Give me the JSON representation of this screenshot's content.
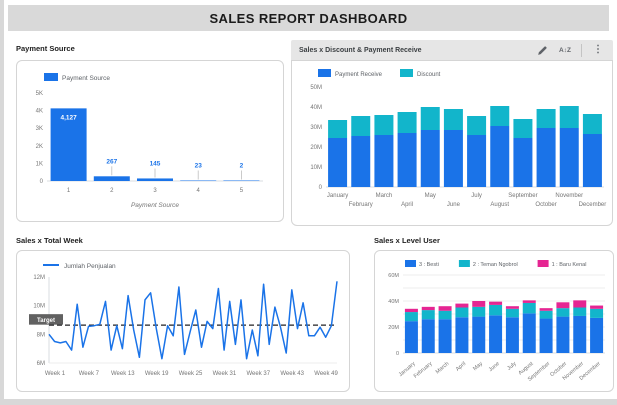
{
  "page": {
    "title": "SALES REPORT DASHBOARD"
  },
  "colors": {
    "blue": "#1a73e8",
    "teal": "#12b5cb",
    "pink": "#e52592",
    "axis_text": "#757575",
    "legend_text": "#5f6368",
    "grid": "#ececec",
    "axis_line": "#dadce0",
    "target_chip_bg": "#616161",
    "header_bg": "#d9d9d9"
  },
  "toolbar": {
    "icons": [
      "edit-icon",
      "sort-az-icon",
      "more-vert-icon"
    ],
    "sort_glyph": "A↕Z",
    "kebab_glyph": "⋮"
  },
  "chart_data": [
    {
      "id": "payment-source",
      "type": "bar",
      "title": "Payment Source",
      "legend": [
        "Payment Source"
      ],
      "categories": [
        "1",
        "2",
        "3",
        "4",
        "5"
      ],
      "values": [
        4127,
        267,
        145,
        23,
        2
      ],
      "value_labels": [
        "4,127",
        "267",
        "145",
        "23",
        "2"
      ],
      "xlabel": "Payment Source",
      "ylim": [
        0,
        5000
      ],
      "yticks": [
        {
          "v": 0,
          "label": "0"
        },
        {
          "v": 1000,
          "label": "1K"
        },
        {
          "v": 2000,
          "label": "2K"
        },
        {
          "v": 3000,
          "label": "3K"
        },
        {
          "v": 4000,
          "label": "4K"
        },
        {
          "v": 5000,
          "label": "5K"
        }
      ],
      "color": "#1a73e8"
    },
    {
      "id": "sales-discount-payment-receive",
      "type": "stacked-bar",
      "title": "Sales x Discount & Payment Receive",
      "categories": [
        "January",
        "February",
        "March",
        "April",
        "May",
        "June",
        "July",
        "August",
        "September",
        "October",
        "November",
        "December"
      ],
      "series": [
        {
          "name": "Payment Receive",
          "color": "#1a73e8",
          "values": [
            24.5,
            25.5,
            26,
            27,
            28.5,
            28.5,
            26,
            30.5,
            24.5,
            29.5,
            29.5,
            26.5
          ]
        },
        {
          "name": "Discount",
          "color": "#12b5cb",
          "values": [
            9,
            10,
            10,
            10.5,
            11.5,
            10.5,
            9.5,
            10,
            9.5,
            9.5,
            11,
            10
          ]
        }
      ],
      "unit": "M",
      "ylim": [
        0,
        50
      ],
      "yticks": [
        {
          "v": 0,
          "label": "0"
        },
        {
          "v": 10,
          "label": "10M"
        },
        {
          "v": 20,
          "label": "20M"
        },
        {
          "v": 30,
          "label": "30M"
        },
        {
          "v": 40,
          "label": "40M"
        },
        {
          "v": 50,
          "label": "50M"
        }
      ],
      "x_label_stagger": true
    },
    {
      "id": "sales-total-week",
      "type": "line",
      "title": "Sales x Total Week",
      "series": [
        {
          "name": "Jumlah Penjualan",
          "color": "#1a73e8",
          "values": [
            8,
            7.5,
            7.4,
            7.5,
            6.9,
            10.1,
            7.1,
            8.55,
            8.6,
            8.7,
            10.3,
            6.9,
            8.6,
            7,
            10.7,
            8.3,
            6.4,
            10.4,
            10.9,
            8.4,
            6.3,
            8.6,
            7.9,
            11.3,
            6.6,
            8.2,
            9.7,
            7.1,
            8.9,
            8.4,
            11.2,
            6.9,
            10.3,
            7.3,
            10.4,
            6.3,
            8.3,
            6.5,
            11.5,
            7.3,
            9.9,
            8.5,
            6.7,
            11.1,
            8.4,
            10.2,
            7.9,
            7.9,
            8.5,
            7.8,
            8.6,
            11.7
          ]
        }
      ],
      "unit": "M",
      "xticks": [
        "Week 1",
        "Week 7",
        "Week 13",
        "Week 19",
        "Week 25",
        "Week 31",
        "Week 37",
        "Week 43",
        "Week 49"
      ],
      "xtick_step": 6,
      "ylim": [
        6,
        12
      ],
      "yticks": [
        {
          "v": 6,
          "label": "6M"
        },
        {
          "v": 8,
          "label": "8M"
        },
        {
          "v": 10,
          "label": "10M"
        },
        {
          "v": 12,
          "label": "12M"
        }
      ],
      "target": {
        "value": 8.64,
        "label": "Target"
      }
    },
    {
      "id": "sales-level-user",
      "type": "stacked-bar",
      "title": "Sales x Level User",
      "categories": [
        "January",
        "February",
        "March",
        "April",
        "May",
        "June",
        "July",
        "August",
        "September",
        "October",
        "November",
        "December"
      ],
      "series": [
        {
          "name": "3 : Besti",
          "color": "#1a73e8",
          "values": [
            24.5,
            26,
            26,
            27.5,
            28,
            29,
            27.5,
            30.5,
            26.5,
            28,
            28.5,
            27
          ]
        },
        {
          "name": "2 : Teman Ngobrol",
          "color": "#12b5cb",
          "values": [
            7,
            7,
            6.5,
            7.5,
            7.5,
            8,
            6.5,
            8,
            6,
            6.5,
            6.5,
            7
          ]
        },
        {
          "name": "1 : Baru Kenal",
          "color": "#e52592",
          "values": [
            2.5,
            2.5,
            3.5,
            3,
            4.5,
            2.5,
            2,
            2,
            2,
            4.5,
            5.5,
            2.5
          ]
        }
      ],
      "unit": "M",
      "ylim": [
        0,
        60
      ],
      "yticks": [
        {
          "v": 0,
          "label": "0"
        },
        {
          "v": 20,
          "label": "20M"
        },
        {
          "v": 40,
          "label": "40M"
        },
        {
          "v": 60,
          "label": "60M"
        }
      ],
      "grid_step": 10,
      "x_labels_rotated": true
    }
  ]
}
